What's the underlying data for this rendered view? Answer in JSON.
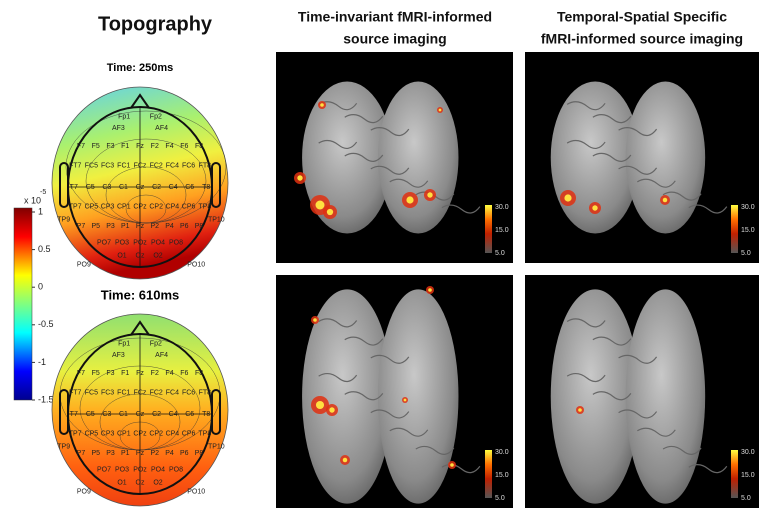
{
  "topography": {
    "title": "Topography",
    "maps": [
      {
        "time": "Time: 250ms"
      },
      {
        "time": "Time: 610ms"
      }
    ],
    "electrodes": [
      "Fp1",
      "Fp2",
      "AF3",
      "AF4",
      "F7",
      "F5",
      "F3",
      "F1",
      "Fz",
      "F2",
      "F4",
      "F6",
      "F8",
      "FT7",
      "FC5",
      "FC3",
      "FC1",
      "FCz",
      "FC2",
      "FC4",
      "FC6",
      "FT8",
      "T7",
      "C5",
      "C3",
      "C1",
      "Cz",
      "C2",
      "C4",
      "C6",
      "T8",
      "TP7",
      "CP5",
      "CP3",
      "CP1",
      "CPz",
      "CP2",
      "CP4",
      "CP6",
      "TP8",
      "P7",
      "P5",
      "P3",
      "P1",
      "Pz",
      "P2",
      "P4",
      "P6",
      "P8",
      "PO7",
      "PO3",
      "POz",
      "PO4",
      "PO8",
      "O1",
      "Oz",
      "O2",
      "TP9",
      "TP10",
      "PO9",
      "PO10"
    ],
    "colorbar": {
      "multiplier": "x 10",
      "exponent": "-5",
      "ticks": [
        "1",
        "0.5",
        "0",
        "-0.5",
        "-1",
        "-1.5"
      ]
    }
  },
  "columns": [
    {
      "title_lines": [
        "Time-invariant fMRI-informed",
        "source imaging"
      ]
    },
    {
      "title_lines": [
        "Temporal-Spatial Specific",
        "fMRI-informed source imaging"
      ]
    }
  ],
  "panel_colorbar_ticks": [
    "30.0",
    "15.0",
    "5.0"
  ]
}
